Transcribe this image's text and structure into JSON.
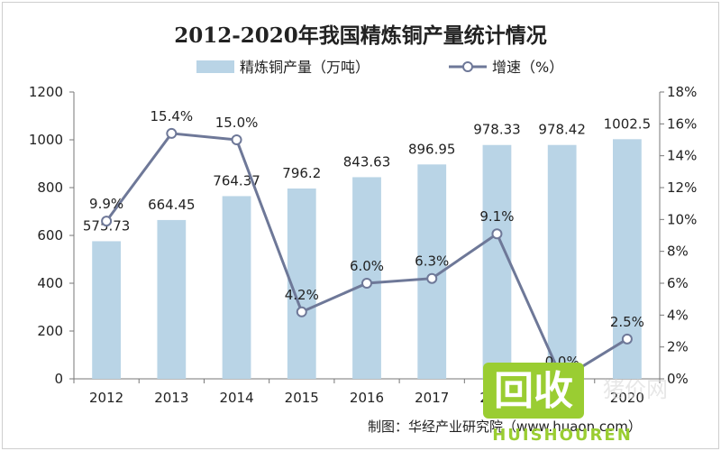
{
  "title": "2012-2020年我国精炼铜产量统计情况",
  "source": "制图：华经产业研究院（www.huaon.com）",
  "colors": {
    "bar": "#b9d4e6",
    "line": "#6e7898",
    "marker_fill": "#ffffff",
    "axis": "#777777",
    "text": "#222222"
  },
  "chart_data": {
    "type": "bar",
    "categories": [
      "2012",
      "2013",
      "2014",
      "2015",
      "2016",
      "2017",
      "2018",
      "2019",
      "2020"
    ],
    "series": [
      {
        "name": "精炼铜产量（万吨）",
        "type": "bar",
        "axis": "left",
        "values": [
          575.73,
          664.45,
          764.37,
          796.2,
          843.63,
          896.95,
          978.33,
          978.42,
          1002.5
        ],
        "labels": [
          "575.73",
          "664.45",
          "764.37",
          "796.2",
          "843.63",
          "896.95",
          "978.33",
          "978.42",
          "1002.5"
        ]
      },
      {
        "name": "增速（%）",
        "type": "line",
        "axis": "right",
        "values": [
          9.9,
          15.4,
          15.0,
          4.2,
          6.0,
          6.3,
          9.1,
          0.0,
          2.5
        ],
        "labels": [
          "9.9%",
          "15.4%",
          "15.0%",
          "4.2%",
          "6.0%",
          "6.3%",
          "9.1%",
          "0.0%",
          "2.5%"
        ]
      }
    ],
    "y_left": {
      "ylim": [
        0,
        1200
      ],
      "ticks": [
        "0",
        "200",
        "400",
        "600",
        "800",
        "1000",
        "1200"
      ]
    },
    "y_right": {
      "ylim": [
        0,
        18
      ],
      "ticks": [
        "0%",
        "2%",
        "4%",
        "6%",
        "8%",
        "10%",
        "12%",
        "14%",
        "16%",
        "18%"
      ]
    },
    "grid": false,
    "legend": "top-center"
  },
  "watermark": {
    "main": "回收",
    "sub": "HUISHOUREN",
    "faint": "猪价网"
  }
}
